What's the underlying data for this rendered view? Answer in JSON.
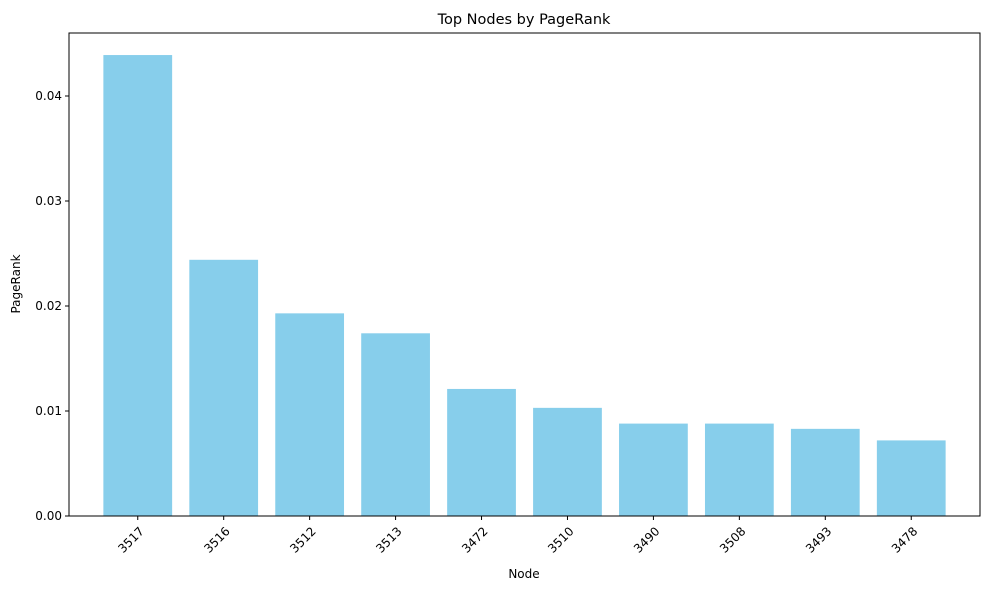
{
  "chart_data": {
    "type": "bar",
    "title": "Top Nodes by PageRank",
    "xlabel": "Node",
    "ylabel": "PageRank",
    "categories": [
      "3517",
      "3516",
      "3512",
      "3513",
      "3472",
      "3510",
      "3490",
      "3508",
      "3493",
      "3478"
    ],
    "values": [
      0.0439,
      0.0244,
      0.0193,
      0.0174,
      0.0121,
      0.0103,
      0.0088,
      0.0088,
      0.0083,
      0.0072
    ],
    "ylim": [
      0,
      0.046
    ],
    "yticks": [
      0.0,
      0.01,
      0.02,
      0.03,
      0.04
    ],
    "ytick_labels": [
      "0.00",
      "0.01",
      "0.02",
      "0.03",
      "0.04"
    ],
    "xtick_rotation": 45,
    "bar_color": "#87ceeb",
    "grid": false,
    "legend": "none"
  }
}
